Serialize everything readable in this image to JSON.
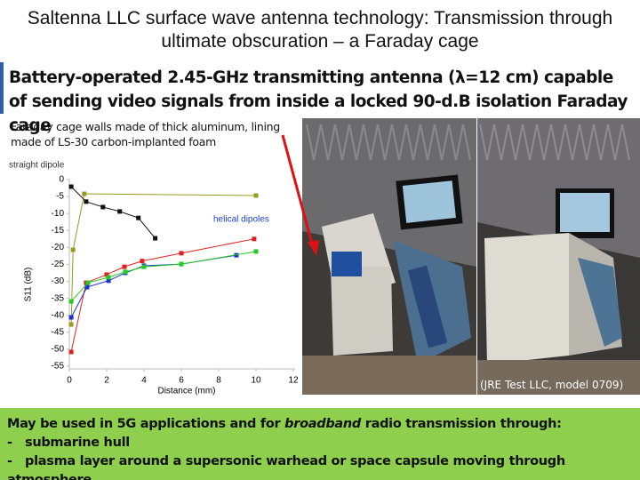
{
  "title": "Saltenna LLC surface wave antenna technology: Transmission through ultimate obscuration – a Faraday cage",
  "subtitle": "Battery-operated 2.45-GHz transmitting antenna (λ=12 cm) capable of sending video signals from inside a locked 90-d.B isolation Faraday cage",
  "note": "Faraday cage walls made of thick aluminum, lining made of LS-30 carbon-implanted foam",
  "photo_caption": "(JRE Test LLC, model 0709)",
  "footer": {
    "intro": [
      "May be used in 5G applications and for ",
      "broadband",
      " radio transmission through:"
    ],
    "items": [
      {
        "marker": "-",
        "text": "submarine hull"
      },
      {
        "marker": "-",
        "text": "plasma layer around a supersonic warhead or space capsule moving through atmosphere"
      }
    ]
  },
  "chart_data": {
    "type": "line",
    "x_label": "Distance (mm)",
    "y_label": "S11 (dB)",
    "xlim": [
      0,
      12
    ],
    "xticks": [
      0,
      2,
      4,
      6,
      8,
      10,
      12
    ],
    "ylim": [
      -55,
      0
    ],
    "yticks": [
      0,
      -5,
      -10,
      -15,
      -20,
      -25,
      -30,
      -35,
      -40,
      -45,
      -50,
      -55
    ],
    "annotations": [
      {
        "text": "straight dipole",
        "color": "#333333"
      },
      {
        "text": "helical dipoles",
        "color": "#1f3fd6"
      }
    ],
    "series": [
      {
        "color": "#999922",
        "x": [
          0.1,
          0.2,
          0.8,
          10
        ],
        "values": [
          -42.7,
          -20.7,
          -4.2,
          -4.7
        ]
      },
      {
        "color": "#111111",
        "x": [
          0.1,
          0.9,
          1.8,
          2.7,
          3.7,
          4.6
        ],
        "values": [
          -2.1,
          -6.5,
          -8.1,
          -9.4,
          -11.3,
          -17.3
        ]
      },
      {
        "color": "#e02020",
        "x": [
          0.1,
          0.9,
          2,
          2.95,
          3.9,
          6,
          9.9
        ],
        "values": [
          -50.8,
          -30.4,
          -28,
          -25.7,
          -24,
          -21.7,
          -17.5
        ]
      },
      {
        "color": "#2030d0",
        "x": [
          0.1,
          0.95,
          2.1,
          3,
          4,
          6,
          8.95
        ],
        "values": [
          -40.6,
          -31.7,
          -29.8,
          -27.5,
          -25.4,
          -24.9,
          -22.3
        ]
      },
      {
        "color": "#22cc22",
        "x": [
          0.1,
          1,
          2.1,
          3,
          4,
          6,
          10
        ],
        "values": [
          -35.9,
          -30.4,
          -28.8,
          -27.2,
          -25.7,
          -24.9,
          -21.2
        ]
      }
    ]
  }
}
